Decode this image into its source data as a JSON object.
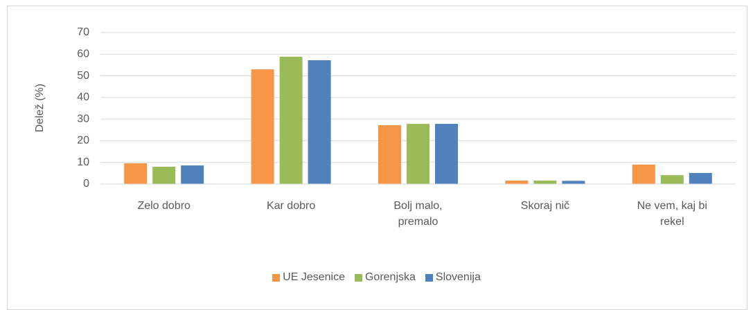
{
  "chart_data": {
    "type": "bar",
    "ylabel": "Delež (%)",
    "categories": [
      "Zelo dobro",
      "Kar dobro",
      "Bolj malo, premalo",
      "Skoraj nič",
      "Ne vem, kaj bi rekel"
    ],
    "series": [
      {
        "name": "UE Jesenice",
        "color": "#f79646",
        "values": [
          9.6,
          53,
          27.2,
          1.6,
          9
        ]
      },
      {
        "name": "Gorenjska",
        "color": "#9bbb59",
        "values": [
          8,
          58.8,
          27.8,
          1.6,
          4.1
        ]
      },
      {
        "name": "Slovenija",
        "color": "#4f81bd",
        "values": [
          8.6,
          57.2,
          27.8,
          1.5,
          5.1
        ]
      }
    ],
    "ylim": [
      0,
      70
    ],
    "yticks": [
      0,
      10,
      20,
      30,
      40,
      50,
      60,
      70
    ],
    "grid": true,
    "legend": "bottom"
  }
}
